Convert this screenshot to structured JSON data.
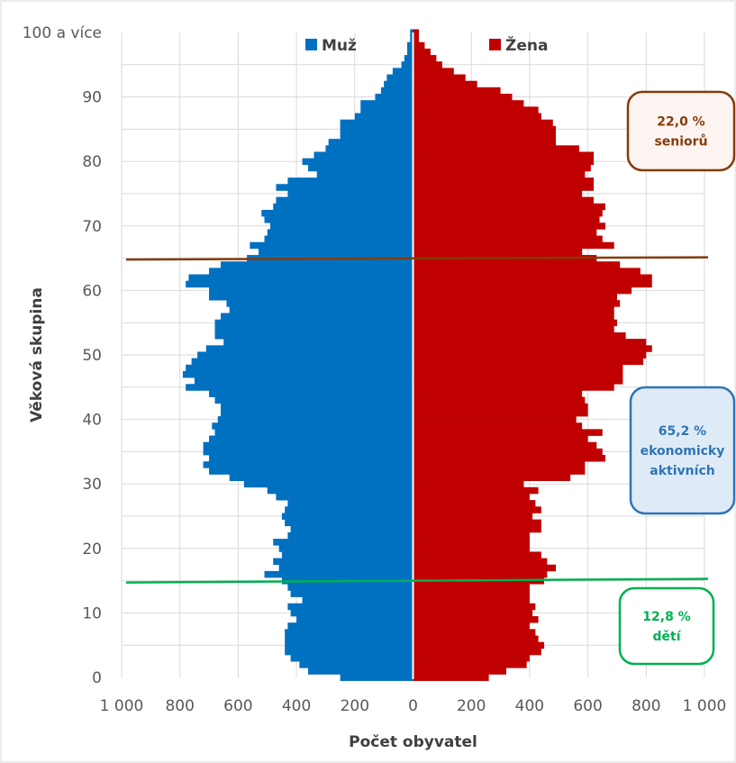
{
  "chart_data": {
    "type": "bar",
    "orientation": "horizontal-pyramid",
    "ylabel": "Věková skupina",
    "xlabel": "Počet obyvatel",
    "x_ticks": [
      "1 000",
      "800",
      "600",
      "400",
      "200",
      "0",
      "200",
      "400",
      "600",
      "800",
      "1 000"
    ],
    "y_ticks": [
      "0",
      "10",
      "20",
      "30",
      "40",
      "50",
      "60",
      "70",
      "80",
      "90",
      "100 a více"
    ],
    "xlim": [
      -1000,
      1000
    ],
    "ylim": [
      0,
      100
    ],
    "grid": true,
    "legend_position": "top",
    "ages": [
      0,
      1,
      2,
      3,
      4,
      5,
      6,
      7,
      8,
      9,
      10,
      11,
      12,
      13,
      14,
      15,
      16,
      17,
      18,
      19,
      20,
      21,
      22,
      23,
      24,
      25,
      26,
      27,
      28,
      29,
      30,
      31,
      32,
      33,
      34,
      35,
      36,
      37,
      38,
      39,
      40,
      41,
      42,
      43,
      44,
      45,
      46,
      47,
      48,
      49,
      50,
      51,
      52,
      53,
      54,
      55,
      56,
      57,
      58,
      59,
      60,
      61,
      62,
      63,
      64,
      65,
      66,
      67,
      68,
      69,
      70,
      71,
      72,
      73,
      74,
      75,
      76,
      77,
      78,
      79,
      80,
      81,
      82,
      83,
      84,
      85,
      86,
      87,
      88,
      89,
      90,
      91,
      92,
      93,
      94,
      95,
      96,
      97,
      98,
      99,
      100
    ],
    "series": [
      {
        "name": "Muž",
        "color": "#0070C0",
        "values": [
          250,
          360,
          390,
          420,
          440,
          440,
          440,
          440,
          430,
          400,
          420,
          430,
          380,
          420,
          430,
          450,
          510,
          460,
          480,
          450,
          460,
          480,
          430,
          420,
          440,
          450,
          440,
          430,
          470,
          500,
          580,
          630,
          700,
          720,
          700,
          720,
          720,
          700,
          680,
          690,
          670,
          660,
          660,
          680,
          700,
          780,
          750,
          790,
          780,
          760,
          740,
          710,
          650,
          680,
          680,
          680,
          660,
          630,
          640,
          700,
          700,
          780,
          770,
          700,
          660,
          570,
          530,
          560,
          510,
          500,
          490,
          510,
          520,
          480,
          470,
          430,
          470,
          430,
          330,
          360,
          380,
          340,
          300,
          290,
          250,
          250,
          250,
          200,
          180,
          180,
          130,
          110,
          100,
          90,
          70,
          40,
          30,
          20,
          20,
          10,
          10
        ]
      },
      {
        "name": "Žena",
        "color": "#C00000",
        "values": [
          260,
          320,
          390,
          400,
          440,
          450,
          430,
          420,
          400,
          430,
          410,
          420,
          400,
          400,
          400,
          450,
          460,
          490,
          460,
          440,
          400,
          400,
          400,
          440,
          440,
          410,
          440,
          420,
          400,
          430,
          380,
          540,
          590,
          590,
          660,
          650,
          630,
          600,
          650,
          580,
          560,
          600,
          600,
          590,
          580,
          690,
          720,
          720,
          720,
          790,
          800,
          820,
          800,
          730,
          690,
          700,
          690,
          690,
          710,
          700,
          750,
          820,
          820,
          780,
          710,
          630,
          580,
          690,
          650,
          630,
          660,
          640,
          650,
          660,
          620,
          580,
          620,
          620,
          590,
          610,
          620,
          620,
          570,
          490,
          490,
          490,
          480,
          440,
          430,
          380,
          340,
          300,
          220,
          180,
          140,
          100,
          80,
          60,
          40,
          20,
          20
        ]
      }
    ],
    "annotations": [
      {
        "lines": [
          "22,0 %",
          "seniorů"
        ],
        "color": "#843C0C",
        "fill": "#FBF4F0"
      },
      {
        "lines": [
          "65,2 %",
          "ekonomicky",
          "aktivních"
        ],
        "color": "#2E75B6",
        "fill": "#DEEBF7"
      },
      {
        "lines": [
          "12,8 %",
          "dětí"
        ],
        "color": "#00B050",
        "fill": "#FFFFFF"
      }
    ],
    "reference_lines": [
      {
        "age": 65,
        "color": "#843C0C"
      },
      {
        "age": 15,
        "color": "#00B050"
      }
    ]
  }
}
